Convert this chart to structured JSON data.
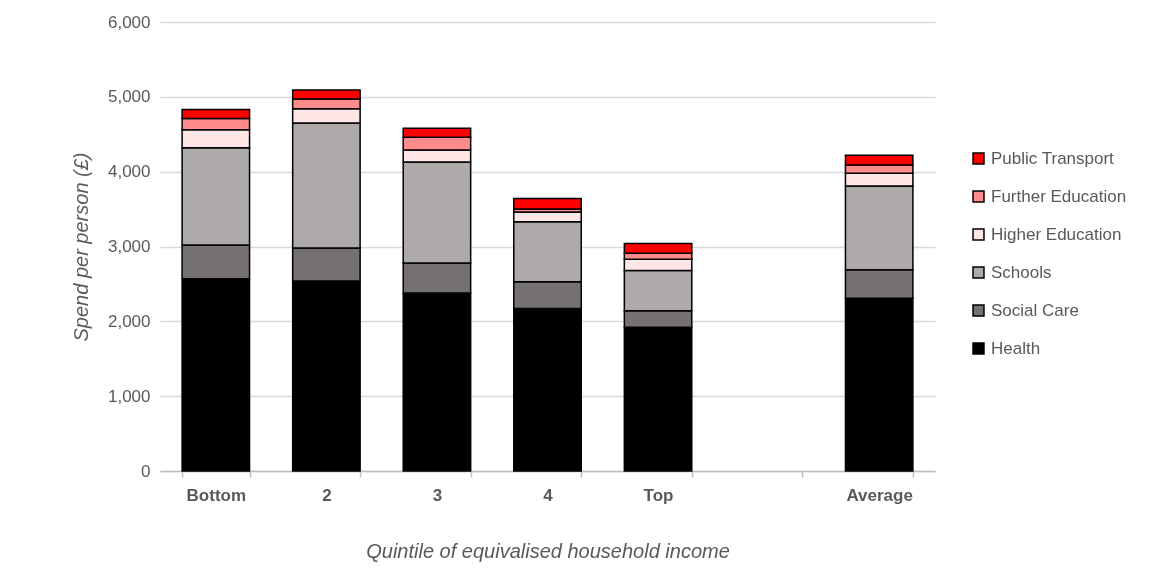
{
  "chart_data": {
    "type": "bar",
    "stacked": true,
    "xlabel": "Quintile of equivalised household income",
    "ylabel": "Spend per person (£)",
    "categories": [
      "Bottom",
      "2",
      "3",
      "4",
      "Top",
      null,
      "Average"
    ],
    "series": [
      {
        "name": "Health",
        "color": "#000000",
        "values": [
          2570,
          2540,
          2380,
          2170,
          1920,
          null,
          2310
        ]
      },
      {
        "name": "Social Care",
        "color": "#767171",
        "values": [
          450,
          440,
          400,
          360,
          220,
          null,
          380
        ]
      },
      {
        "name": "Schools",
        "color": "#aeaaaa",
        "values": [
          1300,
          1670,
          1350,
          800,
          540,
          null,
          1120
        ]
      },
      {
        "name": "Higher Education",
        "color": "#ffe6e6",
        "values": [
          240,
          190,
          160,
          130,
          150,
          null,
          170
        ]
      },
      {
        "name": "Further Education",
        "color": "#ff8b8b",
        "values": [
          150,
          130,
          170,
          40,
          80,
          null,
          110
        ]
      },
      {
        "name": "Public Transport",
        "color": "#ff0000",
        "values": [
          120,
          120,
          120,
          140,
          130,
          null,
          130
        ]
      }
    ],
    "ylim": [
      0,
      6000
    ],
    "yticks": [
      0,
      {
        "value": 1000,
        "label": "1,000"
      },
      {
        "value": 2000,
        "label": "2,000"
      },
      {
        "value": 3000,
        "label": "3,000"
      },
      {
        "value": 4000,
        "label": "4,000"
      },
      {
        "value": 5000,
        "label": "5,000"
      },
      {
        "value": 6000,
        "label": "6,000"
      }
    ],
    "grid": "y",
    "legend": "right"
  }
}
